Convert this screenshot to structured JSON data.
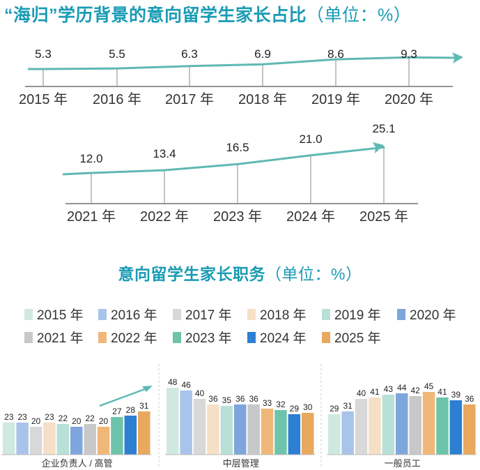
{
  "title1": {
    "main": "“海归”学历背景的意向留学生家长占比",
    "unit": "（单位：%）"
  },
  "title2": {
    "main": "意向留学生家长职务",
    "unit": "（单位：%）"
  },
  "colors": {
    "title": "#1a9bb4",
    "trend_arrow": "#5fb8b4",
    "axis": "#555555",
    "series": [
      "#cfe8e2",
      "#a9c4ea",
      "#d8d8d8",
      "#f5dfc6",
      "#b8e0d6",
      "#7fa6dc",
      "#c8c8c8",
      "#f0b878",
      "#6ec4ab",
      "#2d7fd2",
      "#e8a85e"
    ]
  },
  "chart_data": [
    {
      "type": "line",
      "title": "“海归”学历背景的意向留学生家长占比（单位：%）",
      "x": [
        "2015 年",
        "2016 年",
        "2017 年",
        "2018 年",
        "2019 年",
        "2020 年",
        "2021 年",
        "2022 年",
        "2023 年",
        "2024 年",
        "2025 年"
      ],
      "y": [
        5.3,
        5.5,
        6.3,
        6.9,
        8.6,
        9.3,
        12.0,
        13.4,
        16.5,
        21.0,
        25.1
      ],
      "labels": [
        "5.3",
        "5.5",
        "6.3",
        "6.9",
        "8.6",
        "9.3",
        "12.0",
        "13.4",
        "16.5",
        "21.0",
        "25.1"
      ]
    },
    {
      "type": "bar",
      "title": "意向留学生家长职务（单位：%）",
      "legend": [
        "2015 年",
        "2016 年",
        "2017 年",
        "2018 年",
        "2019 年",
        "2020 年",
        "2021 年",
        "2022 年",
        "2023 年",
        "2024 年",
        "2025 年"
      ],
      "legend_placement": "top",
      "groups": [
        {
          "name": "企业负责人 / 高管",
          "values": [
            23,
            23,
            20,
            23,
            22,
            20,
            22,
            20,
            27,
            28,
            31
          ]
        },
        {
          "name": "中层管理",
          "values": [
            48,
            46,
            40,
            36,
            35,
            36,
            36,
            33,
            32,
            29,
            30
          ]
        },
        {
          "name": "一般员工",
          "values": [
            29,
            31,
            40,
            41,
            43,
            44,
            42,
            45,
            41,
            39,
            36
          ]
        }
      ]
    }
  ]
}
